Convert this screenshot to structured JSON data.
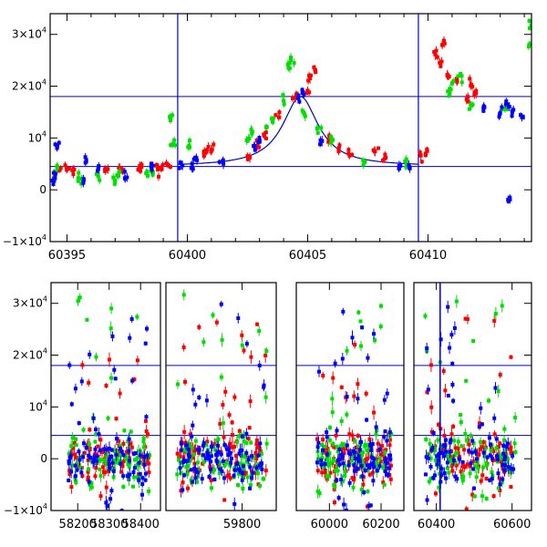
{
  "chart_data": [
    {
      "type": "scatter",
      "title": "",
      "xlabel": "",
      "ylabel": "",
      "xlim": [
        60394.3,
        60414.3
      ],
      "ylim": [
        -10000,
        34000
      ],
      "grid": false,
      "xticks": [
        "60395",
        "60400",
        "60405",
        "60410"
      ],
      "xtick_values": [
        60395,
        60400,
        60405,
        60410
      ],
      "yticks": [
        {
          "value": -10000,
          "base": "−1×10",
          "exp": "4"
        },
        {
          "value": 0,
          "base": "0",
          "exp": ""
        },
        {
          "value": 10000,
          "base": "10",
          "exp": "4"
        },
        {
          "value": 20000,
          "base": "2×10",
          "exp": "4"
        },
        {
          "value": 30000,
          "base": "3×10",
          "exp": "4"
        }
      ],
      "hlines": [
        18000,
        4500
      ],
      "vlines": [
        60399.6,
        60409.6
      ],
      "model_curve": {
        "baseline": 4500,
        "peak": 18000,
        "t0": 60404.7,
        "width": 0.9
      },
      "series": [
        {
          "color": "#ff0000",
          "points": [
            [
              60394.7,
              3800
            ],
            [
              60395.0,
              4000
            ],
            [
              60395.3,
              3900
            ],
            [
              60396.6,
              3600
            ],
            [
              60396.7,
              4000
            ],
            [
              60397.2,
              4100
            ],
            [
              60397.3,
              3800
            ],
            [
              60398.0,
              4200
            ],
            [
              60398.1,
              4400
            ],
            [
              60398.8,
              4300
            ],
            [
              60398.9,
              4100
            ],
            [
              60399.2,
              4800
            ],
            [
              60400.7,
              6800
            ],
            [
              60400.8,
              7300
            ],
            [
              60401.0,
              7700
            ],
            [
              60402.6,
              6200
            ],
            [
              60402.9,
              8500
            ],
            [
              60403.2,
              10400
            ],
            [
              60403.8,
              14000
            ],
            [
              60404.5,
              17800
            ],
            [
              60405.0,
              19100
            ],
            [
              60405.1,
              21500
            ],
            [
              60405.3,
              23200
            ],
            [
              60405.9,
              10200
            ],
            [
              60406.3,
              8100
            ],
            [
              60406.7,
              7000
            ],
            [
              60407.8,
              7400
            ],
            [
              60408.2,
              6000
            ],
            [
              60409.7,
              6600
            ],
            [
              60409.9,
              7000
            ],
            [
              60410.3,
              26100
            ],
            [
              60410.5,
              24500
            ],
            [
              60410.6,
              28000
            ],
            [
              60410.8,
              22200
            ],
            [
              60411.2,
              21000
            ],
            [
              60411.6,
              17500
            ],
            [
              60411.8,
              20300
            ],
            [
              60412.0,
              18600
            ]
          ]
        },
        {
          "color": "#00e000",
          "points": [
            [
              60394.6,
              4200
            ],
            [
              60395.5,
              2200
            ],
            [
              60395.6,
              2100
            ],
            [
              60396.3,
              2600
            ],
            [
              60397.0,
              1500
            ],
            [
              60397.1,
              2900
            ],
            [
              60398.3,
              3200
            ],
            [
              60398.5,
              3600
            ],
            [
              60399.3,
              13800
            ],
            [
              60399.4,
              8800
            ],
            [
              60400.1,
              8200
            ],
            [
              60402.5,
              9600
            ],
            [
              60402.7,
              11200
            ],
            [
              60403.3,
              12100
            ],
            [
              60403.5,
              13700
            ],
            [
              60404.0,
              17200
            ],
            [
              60404.2,
              23500
            ],
            [
              60404.3,
              25000
            ],
            [
              60404.9,
              14200
            ],
            [
              60405.4,
              11900
            ],
            [
              60406.0,
              9800
            ],
            [
              60407.3,
              5700
            ],
            [
              60409.1,
              5200
            ],
            [
              60410.9,
              18500
            ],
            [
              60411.0,
              20500
            ],
            [
              60411.4,
              22000
            ],
            [
              60411.8,
              16300
            ],
            [
              60413.2,
              15700
            ],
            [
              60414.2,
              28000
            ],
            [
              60414.3,
              32500
            ]
          ]
        },
        {
          "color": "#0000ff",
          "points": [
            [
              60394.4,
              1800
            ],
            [
              60394.5,
              2500
            ],
            [
              60394.6,
              8400
            ],
            [
              60395.7,
              1900
            ],
            [
              60395.8,
              5800
            ],
            [
              60396.3,
              4000
            ],
            [
              60397.4,
              3500
            ],
            [
              60398.5,
              4500
            ],
            [
              60399.8,
              4700
            ],
            [
              60400.2,
              4300
            ],
            [
              60400.4,
              5700
            ],
            [
              60401.5,
              5000
            ],
            [
              60402.8,
              8400
            ],
            [
              60403.0,
              9600
            ],
            [
              60404.6,
              17800
            ],
            [
              60404.8,
              18900
            ],
            [
              60405.6,
              9400
            ],
            [
              60408.8,
              4600
            ],
            [
              60409.2,
              4800
            ],
            [
              60412.3,
              15800
            ],
            [
              60413.0,
              14800
            ],
            [
              60413.3,
              16500
            ],
            [
              60413.5,
              15200
            ],
            [
              60413.9,
              14000
            ],
            [
              60413.4,
              -1500
            ]
          ]
        }
      ]
    },
    {
      "type": "scatter",
      "title": "",
      "xlabel": "",
      "ylabel": "",
      "grid": false,
      "yticks": [
        {
          "value": -10000,
          "base": "−1×10",
          "exp": "4"
        },
        {
          "value": 0,
          "base": "0",
          "exp": ""
        },
        {
          "value": 10000,
          "base": "10",
          "exp": "4"
        },
        {
          "value": 20000,
          "base": "2×10",
          "exp": "4"
        },
        {
          "value": 30000,
          "base": "3×10",
          "exp": "4"
        }
      ],
      "ylim": [
        -10000,
        34000
      ],
      "hlines": [
        18000,
        4500
      ],
      "vlines": [
        60410
      ],
      "segments": [
        {
          "xlim": [
            58150,
            58440
          ],
          "xticks": [
            "58200",
            "58300",
            "58400"
          ],
          "xtick_values": [
            58200,
            58300,
            58400
          ]
        },
        {
          "xlim": [
            59620,
            59870
          ],
          "xticks": [
            "59800"
          ],
          "xtick_values": [
            59800
          ]
        },
        {
          "xlim": [
            59900,
            60260
          ],
          "xticks": [
            "60000",
            "60200"
          ],
          "xtick_values": [
            60000,
            60200
          ]
        },
        {
          "xlim": [
            60360,
            60620
          ],
          "xticks": [
            "60400",
            "60600"
          ],
          "xtick_values": [
            60400,
            60600
          ]
        }
      ],
      "point_clusters": [
        {
          "segment": 0,
          "x_range": [
            58170,
            58430
          ],
          "colors": [
            "#ff0000",
            "#00e000",
            "#0000ff"
          ],
          "count": 260,
          "center": 0,
          "spread": 2600,
          "outlier_rate": 0.18,
          "outlier_range": [
            -10000,
            32000
          ]
        },
        {
          "segment": 1,
          "x_range": [
            59630,
            59865
          ],
          "colors": [
            "#ff0000",
            "#00e000",
            "#0000ff"
          ],
          "count": 280,
          "center": 0,
          "spread": 2800,
          "outlier_rate": 0.2,
          "outlier_range": [
            -10000,
            32000
          ]
        },
        {
          "segment": 2,
          "x_range": [
            59950,
            60240
          ],
          "colors": [
            "#ff0000",
            "#00e000",
            "#0000ff"
          ],
          "count": 280,
          "center": 0,
          "spread": 2800,
          "outlier_rate": 0.2,
          "outlier_range": [
            -10000,
            30000
          ]
        },
        {
          "segment": 3,
          "x_range": [
            60370,
            60610
          ],
          "colors": [
            "#ff0000",
            "#00e000",
            "#0000ff"
          ],
          "count": 260,
          "center": 0,
          "spread": 2600,
          "outlier_rate": 0.2,
          "outlier_range": [
            -10000,
            32000
          ]
        }
      ]
    }
  ]
}
